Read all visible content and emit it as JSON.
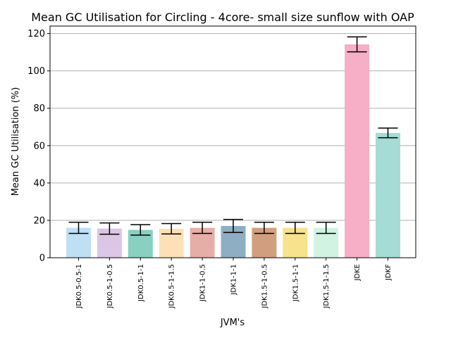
{
  "chart_data": {
    "type": "bar",
    "title": "Mean GC Utilisation for Circling - 4core- small size sunflow with OAP",
    "xlabel": "JVM's",
    "ylabel": "Mean GC Utilisation (%)",
    "ylim": [
      0,
      124
    ],
    "yticks": [
      0,
      20,
      40,
      60,
      80,
      100,
      120
    ],
    "grid": "horizontal",
    "categories": [
      "JDK0.5-0.5-1",
      "JDK0.5-1-0.5",
      "JDK0.5-1-1",
      "JDK0.5-1-1.5",
      "JDK1-1-0.5",
      "JDK1-1-1",
      "JDK1.5-1-0.5",
      "JDK1.5-1-1",
      "JDK1.5-1-1.5",
      "JDKE",
      "JDKF"
    ],
    "values": [
      16.0,
      15.6,
      14.9,
      15.5,
      16.0,
      17.0,
      16.0,
      16.0,
      16.0,
      114.2,
      66.8
    ],
    "error": [
      3.0,
      3.0,
      2.8,
      2.8,
      3.0,
      3.5,
      3.0,
      3.0,
      3.0,
      4.0,
      2.6
    ],
    "colors": [
      "#bfdff4",
      "#dcc6e6",
      "#88d0c1",
      "#fde1b6",
      "#e5afa7",
      "#8eaec4",
      "#d19f7f",
      "#f7e28d",
      "#d1f4e2",
      "#f7aec7",
      "#a5dcd5"
    ]
  }
}
